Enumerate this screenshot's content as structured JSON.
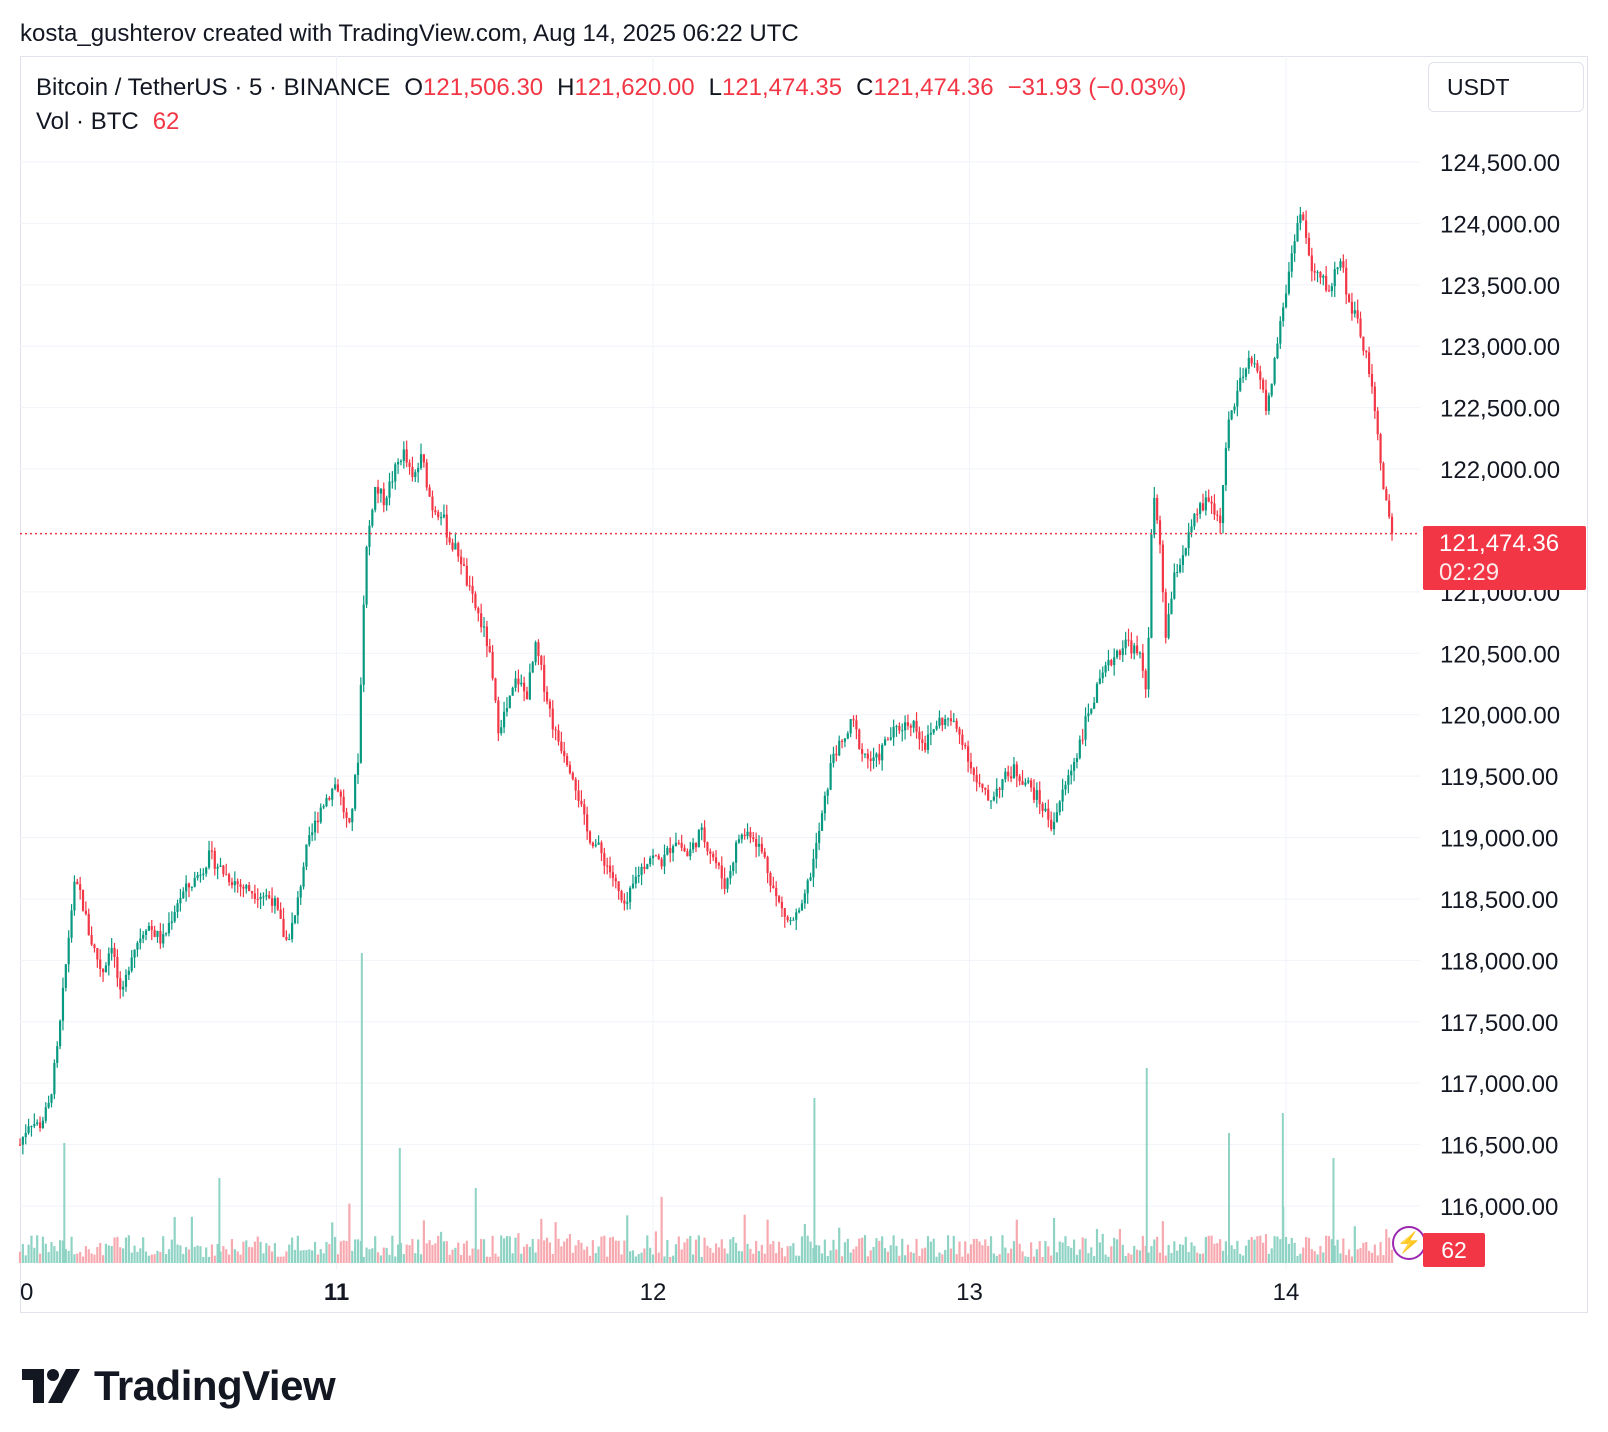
{
  "caption": "kosta_gushterov created with TradingView.com, Aug 14, 2025 06:22 UTC",
  "legend": {
    "symbol": "Bitcoin / TetherUS · 5 · BINANCE",
    "o_label": "O",
    "o_value": "121,506.30",
    "h_label": "H",
    "h_value": "121,620.00",
    "l_label": "L",
    "l_value": "121,474.35",
    "c_label": "C",
    "c_value": "121,474.36",
    "change": "−31.93 (−0.03%)",
    "vol_label": "Vol · BTC",
    "vol_value": "62"
  },
  "currency": "USDT",
  "last_price": {
    "price": "121,474.36",
    "countdown": "02:29",
    "volume": "62"
  },
  "colors": {
    "up": "#089981",
    "down": "#f23645",
    "up_volume": "#8fd3c4",
    "down_volume": "#f7a9b0",
    "grid": "#f0f3fa",
    "bolt": "#9c27b0"
  },
  "icons": {
    "bolt": "lightning-bolt-icon",
    "logo": "tradingview-logo-icon"
  },
  "brand": "TradingView",
  "chart_data": {
    "type": "candlestick",
    "interval": "5 min",
    "y_axis": {
      "ticks": [
        "124,500.00",
        "124,000.00",
        "123,500.00",
        "123,000.00",
        "122,500.00",
        "122,000.00",
        "121,000.00",
        "120,500.00",
        "120,000.00",
        "119,500.00",
        "119,000.00",
        "118,500.00",
        "118,000.00",
        "117,500.00",
        "117,000.00",
        "116,500.00",
        "116,000.00"
      ],
      "tick_values": [
        124500,
        124000,
        123500,
        123000,
        122500,
        122000,
        121000,
        120500,
        120000,
        119500,
        119000,
        118500,
        118000,
        117500,
        117000,
        116500,
        116000
      ],
      "range": [
        115600,
        124900
      ]
    },
    "x_axis": {
      "ticks": [
        "0",
        "11",
        "12",
        "13",
        "14"
      ],
      "tick_days": [
        0,
        1,
        2,
        3,
        4
      ],
      "range": [
        0,
        4.35
      ],
      "bold_ticks": [
        "11"
      ]
    },
    "price_path": [
      [
        0.0,
        116500
      ],
      [
        0.03,
        116700
      ],
      [
        0.06,
        116650
      ],
      [
        0.09,
        116800
      ],
      [
        0.12,
        117300
      ],
      [
        0.15,
        118100
      ],
      [
        0.17,
        118600
      ],
      [
        0.19,
        118550
      ],
      [
        0.22,
        118200
      ],
      [
        0.26,
        117900
      ],
      [
        0.29,
        118150
      ],
      [
        0.32,
        117650
      ],
      [
        0.35,
        118050
      ],
      [
        0.4,
        118300
      ],
      [
        0.45,
        118150
      ],
      [
        0.5,
        118500
      ],
      [
        0.55,
        118650
      ],
      [
        0.6,
        118850
      ],
      [
        0.65,
        118700
      ],
      [
        0.7,
        118600
      ],
      [
        0.75,
        118550
      ],
      [
        0.8,
        118500
      ],
      [
        0.84,
        118150
      ],
      [
        0.87,
        118350
      ],
      [
        0.9,
        118850
      ],
      [
        0.95,
        119250
      ],
      [
        1.0,
        119450
      ],
      [
        1.04,
        119050
      ],
      [
        1.07,
        119700
      ],
      [
        1.09,
        121250
      ],
      [
        1.12,
        121850
      ],
      [
        1.15,
        121750
      ],
      [
        1.18,
        121950
      ],
      [
        1.21,
        122150
      ],
      [
        1.24,
        121900
      ],
      [
        1.27,
        122100
      ],
      [
        1.3,
        121700
      ],
      [
        1.33,
        121650
      ],
      [
        1.36,
        121400
      ],
      [
        1.39,
        121300
      ],
      [
        1.42,
        121000
      ],
      [
        1.45,
        120800
      ],
      [
        1.48,
        120550
      ],
      [
        1.51,
        119900
      ],
      [
        1.54,
        120050
      ],
      [
        1.57,
        120300
      ],
      [
        1.6,
        120150
      ],
      [
        1.63,
        120550
      ],
      [
        1.66,
        120200
      ],
      [
        1.69,
        119850
      ],
      [
        1.72,
        119700
      ],
      [
        1.75,
        119500
      ],
      [
        1.79,
        119050
      ],
      [
        1.83,
        118900
      ],
      [
        1.87,
        118700
      ],
      [
        1.91,
        118400
      ],
      [
        1.95,
        118700
      ],
      [
        1.99,
        118850
      ],
      [
        2.03,
        118800
      ],
      [
        2.07,
        119000
      ],
      [
        2.11,
        118850
      ],
      [
        2.15,
        119050
      ],
      [
        2.19,
        118850
      ],
      [
        2.23,
        118600
      ],
      [
        2.27,
        119000
      ],
      [
        2.31,
        119050
      ],
      [
        2.35,
        118850
      ],
      [
        2.39,
        118500
      ],
      [
        2.43,
        118300
      ],
      [
        2.47,
        118400
      ],
      [
        2.51,
        118850
      ],
      [
        2.54,
        119250
      ],
      [
        2.57,
        119700
      ],
      [
        2.6,
        119750
      ],
      [
        2.63,
        119950
      ],
      [
        2.66,
        119700
      ],
      [
        2.7,
        119600
      ],
      [
        2.74,
        119800
      ],
      [
        2.78,
        119900
      ],
      [
        2.82,
        119950
      ],
      [
        2.86,
        119750
      ],
      [
        2.9,
        119950
      ],
      [
        2.94,
        119950
      ],
      [
        2.98,
        119800
      ],
      [
        3.02,
        119450
      ],
      [
        3.06,
        119300
      ],
      [
        3.1,
        119450
      ],
      [
        3.14,
        119550
      ],
      [
        3.18,
        119450
      ],
      [
        3.22,
        119300
      ],
      [
        3.26,
        119100
      ],
      [
        3.3,
        119400
      ],
      [
        3.34,
        119700
      ],
      [
        3.38,
        120050
      ],
      [
        3.42,
        120300
      ],
      [
        3.46,
        120500
      ],
      [
        3.5,
        120600
      ],
      [
        3.54,
        120450
      ],
      [
        3.56,
        120200
      ],
      [
        3.58,
        121850
      ],
      [
        3.6,
        121400
      ],
      [
        3.62,
        120650
      ],
      [
        3.65,
        121150
      ],
      [
        3.68,
        121350
      ],
      [
        3.72,
        121650
      ],
      [
        3.76,
        121750
      ],
      [
        3.79,
        121550
      ],
      [
        3.82,
        122400
      ],
      [
        3.85,
        122650
      ],
      [
        3.88,
        122850
      ],
      [
        3.91,
        122850
      ],
      [
        3.94,
        122450
      ],
      [
        3.97,
        123000
      ],
      [
        4.0,
        123450
      ],
      [
        4.03,
        123950
      ],
      [
        4.05,
        124100
      ],
      [
        4.08,
        123600
      ],
      [
        4.11,
        123550
      ],
      [
        4.14,
        123450
      ],
      [
        4.17,
        123750
      ],
      [
        4.2,
        123350
      ],
      [
        4.23,
        123150
      ],
      [
        4.26,
        122850
      ],
      [
        4.29,
        122250
      ],
      [
        4.32,
        121650
      ],
      [
        4.335,
        121474
      ]
    ],
    "volume_spikes": [
      [
        1.08,
        310
      ],
      [
        3.56,
        195
      ],
      [
        2.51,
        165
      ],
      [
        0.14,
        120
      ],
      [
        1.2,
        115
      ],
      [
        3.99,
        150
      ],
      [
        4.15,
        105
      ],
      [
        3.82,
        130
      ],
      [
        0.63,
        85
      ],
      [
        1.44,
        75
      ]
    ]
  }
}
